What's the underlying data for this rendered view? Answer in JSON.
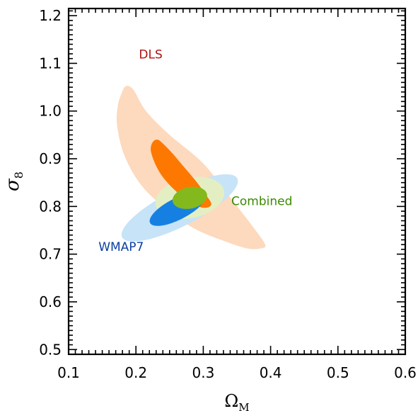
{
  "chart_data": {
    "type": "contour",
    "xlabel": "Ω",
    "xlabel_sub": "M",
    "ylabel": "σ",
    "ylabel_sub": "8",
    "xlim": [
      0.1,
      0.6
    ],
    "ylim": [
      0.49,
      1.215
    ],
    "xticks": [
      0.1,
      0.2,
      0.3,
      0.4,
      0.5,
      0.6
    ],
    "xtick_labels": [
      "0.1",
      "0.2",
      "0.3",
      "0.4",
      "0.5",
      "0.6"
    ],
    "yticks": [
      0.5,
      0.6,
      0.7,
      0.8,
      0.9,
      1.0,
      1.1,
      1.2
    ],
    "ytick_labels": [
      "0.5",
      "0.6",
      "0.7",
      "0.8",
      "0.9",
      "1.0",
      "1.1",
      "1.2"
    ],
    "x_minor_step": 0.01,
    "y_minor_step": 0.01,
    "grid": false,
    "series": [
      {
        "name": "DLS",
        "label_color": "#b01010",
        "label_at": [
          0.222,
          1.11
        ],
        "regions": [
          {
            "level": "outer",
            "color": "#fdd9bd",
            "points": [
              [
                0.178,
                1.035
              ],
              [
                0.185,
                1.052
              ],
              [
                0.196,
                1.045
              ],
              [
                0.215,
                1.0
              ],
              [
                0.25,
                0.95
              ],
              [
                0.3,
                0.89
              ],
              [
                0.345,
                0.81
              ],
              [
                0.375,
                0.755
              ],
              [
                0.392,
                0.72
              ],
              [
                0.385,
                0.712
              ],
              [
                0.365,
                0.712
              ],
              [
                0.33,
                0.728
              ],
              [
                0.285,
                0.755
              ],
              [
                0.24,
                0.8
              ],
              [
                0.205,
                0.85
              ],
              [
                0.182,
                0.91
              ],
              [
                0.172,
                0.97
              ],
              [
                0.173,
                1.01
              ]
            ]
          },
          {
            "level": "inner",
            "color": "#fd7800",
            "points": [
              [
                0.225,
                0.935
              ],
              [
                0.232,
                0.94
              ],
              [
                0.24,
                0.932
              ],
              [
                0.255,
                0.91
              ],
              [
                0.27,
                0.885
              ],
              [
                0.288,
                0.855
              ],
              [
                0.302,
                0.828
              ],
              [
                0.312,
                0.805
              ],
              [
                0.302,
                0.797
              ],
              [
                0.285,
                0.805
              ],
              [
                0.265,
                0.825
              ],
              [
                0.248,
                0.848
              ],
              [
                0.235,
                0.872
              ],
              [
                0.226,
                0.898
              ],
              [
                0.222,
                0.92
              ]
            ]
          }
        ]
      },
      {
        "name": "WMAP7",
        "label_color": "#0b3fa2",
        "label_at": [
          0.178,
          0.707
        ],
        "regions": [
          {
            "level": "outer",
            "color": "#c6e3f8",
            "center": [
              0.265,
              0.797
            ],
            "radius_along": 0.096,
            "radius_across": 0.027,
            "rotation_deg": 27
          },
          {
            "level": "inner",
            "color": "#1680e2",
            "center": [
              0.262,
              0.795
            ],
            "radius_along": 0.046,
            "radius_across": 0.016,
            "rotation_deg": 27
          }
        ]
      },
      {
        "name": "Combined",
        "label_color": "#3b8a00",
        "label_at": [
          0.387,
          0.803
        ],
        "regions": [
          {
            "level": "outer",
            "color": "#e3efc3",
            "center": [
              0.28,
              0.818
            ],
            "radius_along": 0.052,
            "radius_across": 0.03,
            "rotation_deg": 12
          },
          {
            "level": "inner",
            "color": "#83b91c",
            "center": [
              0.28,
              0.818
            ],
            "radius_along": 0.026,
            "radius_across": 0.016,
            "rotation_deg": 12
          }
        ]
      }
    ]
  }
}
